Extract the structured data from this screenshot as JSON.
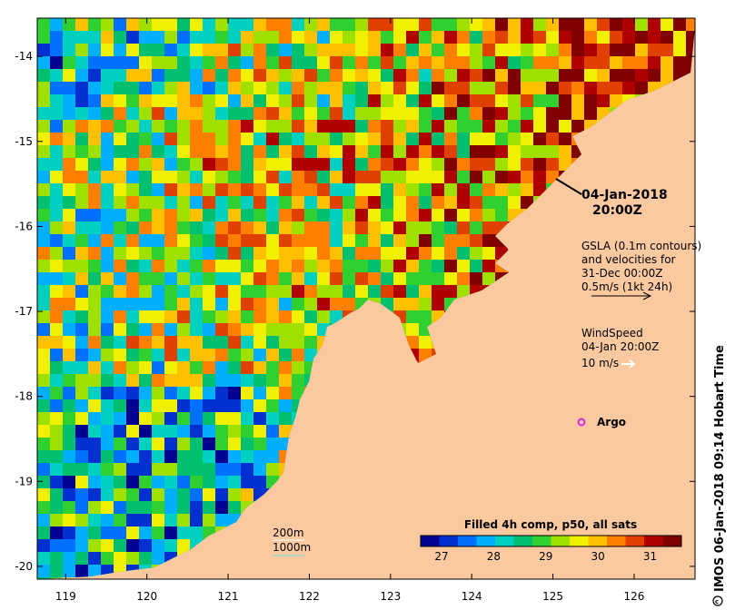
{
  "map": {
    "x_ticks": [
      "119",
      "120",
      "121",
      "122",
      "123",
      "124",
      "125",
      "126"
    ],
    "y_ticks": [
      "-14",
      "-15",
      "-16",
      "-17",
      "-18",
      "-19",
      "-20"
    ],
    "lon_range": [
      118.65,
      126.75
    ],
    "lat_range": [
      -20.15,
      -13.55
    ],
    "land_color": "#fbc9a0"
  },
  "annotations": {
    "date": "04-Jan-2018",
    "time": "20:00Z",
    "gsla_line1": "GSLA (0.1m contours)",
    "gsla_line2": "and velocities for",
    "gsla_line3": "31-Dec 00:00Z",
    "gsla_line4": "0.5m/s (1kt 24h)",
    "wind_line1": "WindSpeed",
    "wind_line2": "04-Jan 20:00Z",
    "wind_scale": "10 m/s",
    "argo_label": "Argo",
    "argo_color": "#dd22dd",
    "depth_200": "200m",
    "depth_1000": "1000m",
    "depth_200_color": "#ffffff",
    "depth_1000_color": "#66dddd"
  },
  "colorbar": {
    "title": "Filled 4h comp, p50, all sats",
    "ticks": [
      "27",
      "28",
      "29",
      "30",
      "31"
    ],
    "tick_values": [
      27,
      28,
      29,
      30,
      31
    ],
    "range": [
      26.6,
      31.6
    ],
    "colors": [
      "#000090",
      "#0030d0",
      "#0070ff",
      "#00b0ff",
      "#00d0c0",
      "#00c070",
      "#30d030",
      "#a0e000",
      "#f0f000",
      "#ffc000",
      "#ff8000",
      "#e04000",
      "#b00000",
      "#800000"
    ]
  },
  "credit": "IMOS 06-Jan-2018 09:14 Hobart Time"
}
